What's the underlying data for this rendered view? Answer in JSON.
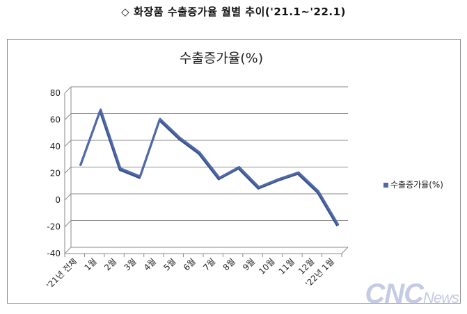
{
  "header": {
    "icon": "diamond-outline-icon",
    "title": "화장품 수출증가율 월별 추이('21.1~'22.1)"
  },
  "chart_data": {
    "type": "line",
    "title": "수출증가율(%)",
    "xlabel": "",
    "ylabel": "",
    "categories": [
      "'21년 전체",
      "1월",
      "2월",
      "3월",
      "4월",
      "5월",
      "6월",
      "7월",
      "8월",
      "9월",
      "10월",
      "11월",
      "12월",
      "'22년 1월"
    ],
    "series": [
      {
        "name": "수출증가율(%)",
        "values": [
          22,
          63,
          19,
          13,
          56,
          42,
          31,
          12,
          20,
          5,
          11,
          16,
          2,
          -23
        ],
        "color": "#4f6aa7"
      }
    ],
    "ylim": [
      -40,
      80
    ],
    "yticks": [
      80,
      60,
      40,
      20,
      0,
      -20,
      -40
    ],
    "grid": true,
    "legend": "right"
  },
  "watermark": {
    "main": "CNC",
    "sub": "News"
  }
}
